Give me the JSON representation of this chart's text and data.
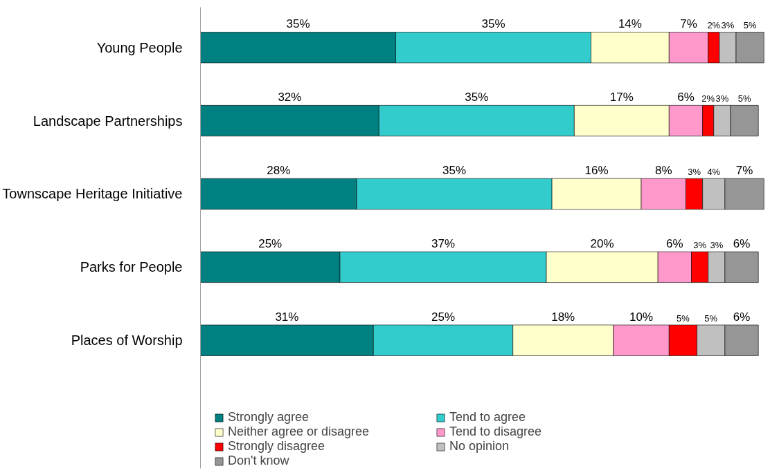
{
  "chart_data": {
    "type": "bar",
    "orientation": "horizontal",
    "stacked": true,
    "tick_labels": "y",
    "legend": "bottom",
    "grid": false,
    "categories": [
      "Young People",
      "Landscape Partnerships",
      "Townscape Heritage Initiative",
      "Parks for People",
      "Places of Worship"
    ],
    "series": [
      {
        "name": "Strongly agree",
        "color": "#008080",
        "values": [
          35,
          32,
          28,
          25,
          31
        ],
        "value_labels": [
          "35%",
          "32%",
          "28%",
          "25%",
          "31%"
        ]
      },
      {
        "name": "Tend to agree",
        "color": "#33cccc",
        "values": [
          35,
          35,
          35,
          37,
          25
        ],
        "value_labels": [
          "35%",
          "35%",
          "35%",
          "37%",
          "25%"
        ]
      },
      {
        "name": "Neither agree or disagree",
        "color": "#ffffcc",
        "values": [
          14,
          17,
          16,
          20,
          18
        ],
        "value_labels": [
          "14%",
          "17%",
          "16%",
          "20%",
          "18%"
        ]
      },
      {
        "name": "Tend to disagree",
        "color": "#ff99cc",
        "values": [
          7,
          6,
          8,
          6,
          10
        ],
        "value_labels": [
          "7%",
          "6%",
          "8%",
          "6%",
          "10%"
        ]
      },
      {
        "name": "Strongly disagree",
        "color": "#ff0000",
        "values": [
          2,
          2,
          3,
          3,
          5
        ],
        "value_labels": [
          "2%",
          "2%",
          "3%",
          "3%",
          "5%"
        ]
      },
      {
        "name": "No opinion",
        "color": "#c0c0c0",
        "values": [
          3,
          3,
          4,
          3,
          5
        ],
        "value_labels": [
          "3%",
          "3%",
          "4%",
          "3%",
          "5%"
        ]
      },
      {
        "name": "Don't know",
        "color": "#969696",
        "values": [
          5,
          5,
          7,
          6,
          6
        ],
        "value_labels": [
          "5%",
          "5%",
          "7%",
          "6%",
          "6%"
        ]
      }
    ]
  }
}
